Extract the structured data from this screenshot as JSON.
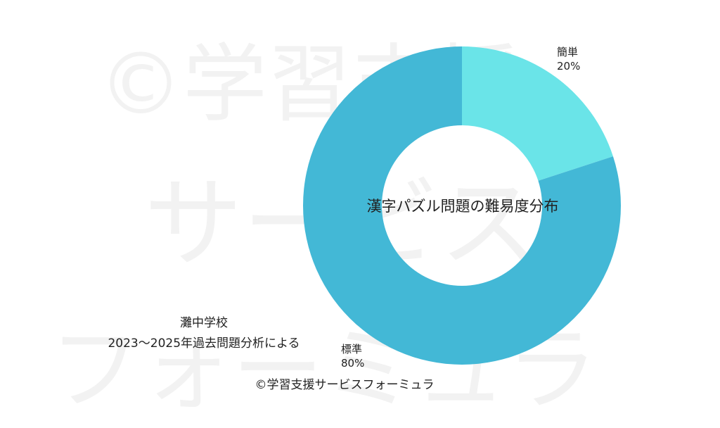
{
  "watermark": {
    "lines": [
      "©学習支援",
      "サービス",
      "フォーミュラ"
    ]
  },
  "chart_data": {
    "type": "pie",
    "style": "donut",
    "title": "漢字パズル問題の難易度分布",
    "categories": [
      "簡単",
      "標準"
    ],
    "values": [
      20,
      80
    ],
    "value_labels": [
      "20%",
      "80%"
    ],
    "colors": [
      "#6ae4e8",
      "#43b8d6"
    ],
    "legend": "none"
  },
  "source_note": {
    "line1": "灘中学校",
    "line2": "2023〜2025年過去問題分析による"
  },
  "copyright": "©学習支援サービスフォーミュラ"
}
